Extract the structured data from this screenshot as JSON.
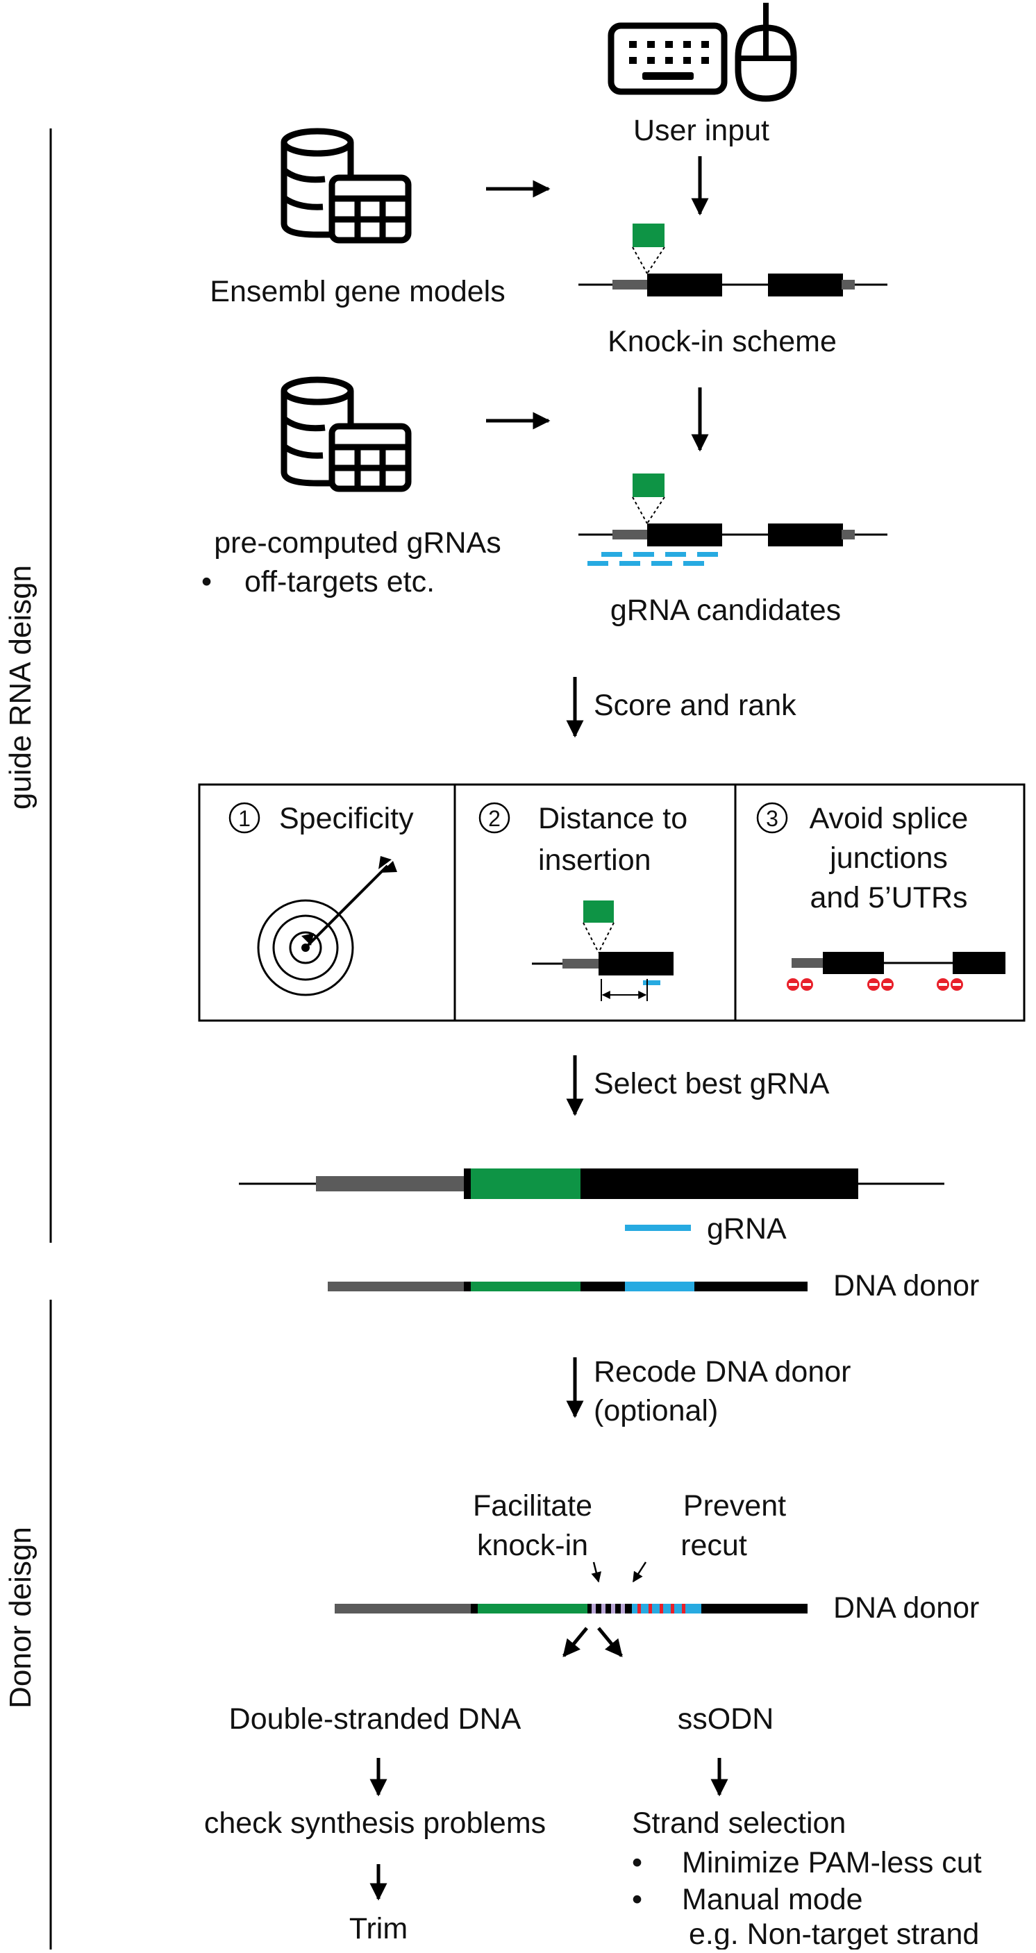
{
  "colors": {
    "green": "#0e9445",
    "blue": "#27aae1",
    "red": "#e8202a",
    "grey": "#5b5b5b",
    "black": "#000000"
  },
  "icons": {
    "keyboard": "keyboard-icon",
    "mouse": "mouse-icon",
    "database": "database-table-icon",
    "target": "target-icon"
  },
  "sections": {
    "guide": "guide RNA deisgn",
    "donor": "Donor deisgn"
  },
  "top": {
    "user_input": "User input",
    "gene_models": "Ensembl gene models",
    "knockin_scheme": "Knock-in scheme",
    "precomputed": "pre-computed gRNAs",
    "bullet": "•",
    "offtargets": "off-targets etc.",
    "candidates": "gRNA candidates",
    "score_rank": "Score and rank"
  },
  "criteria": {
    "c1_num": "1",
    "c1_label": "Specificity",
    "c2_num": "2",
    "c2_line1": "Distance to",
    "c2_line2": "insertion",
    "c3_num": "3",
    "c3_line1": "Avoid splice",
    "c3_line2": "junctions",
    "c3_line3": "and 5’UTRs"
  },
  "middle": {
    "select_best": "Select best gRNA",
    "grna": "gRNA",
    "dna_donor": "DNA donor",
    "recode_line1": "Recode DNA donor",
    "recode_line2": "(optional)",
    "facilitate_1": "Facilitate",
    "facilitate_2": "knock-in",
    "prevent_1": "Prevent",
    "prevent_2": "recut",
    "dna_donor_2": "DNA donor"
  },
  "bottom": {
    "double_stranded": "Double-stranded DNA",
    "ssodn": "ssODN",
    "check_synthesis": "check synthesis problems",
    "trim": "Trim",
    "strand_selection": "Strand selection",
    "bullet1": "•",
    "minimize": "Minimize PAM-less cut",
    "bullet2": "•",
    "manual": "Manual mode",
    "nontarget": "e.g. Non-target strand"
  }
}
